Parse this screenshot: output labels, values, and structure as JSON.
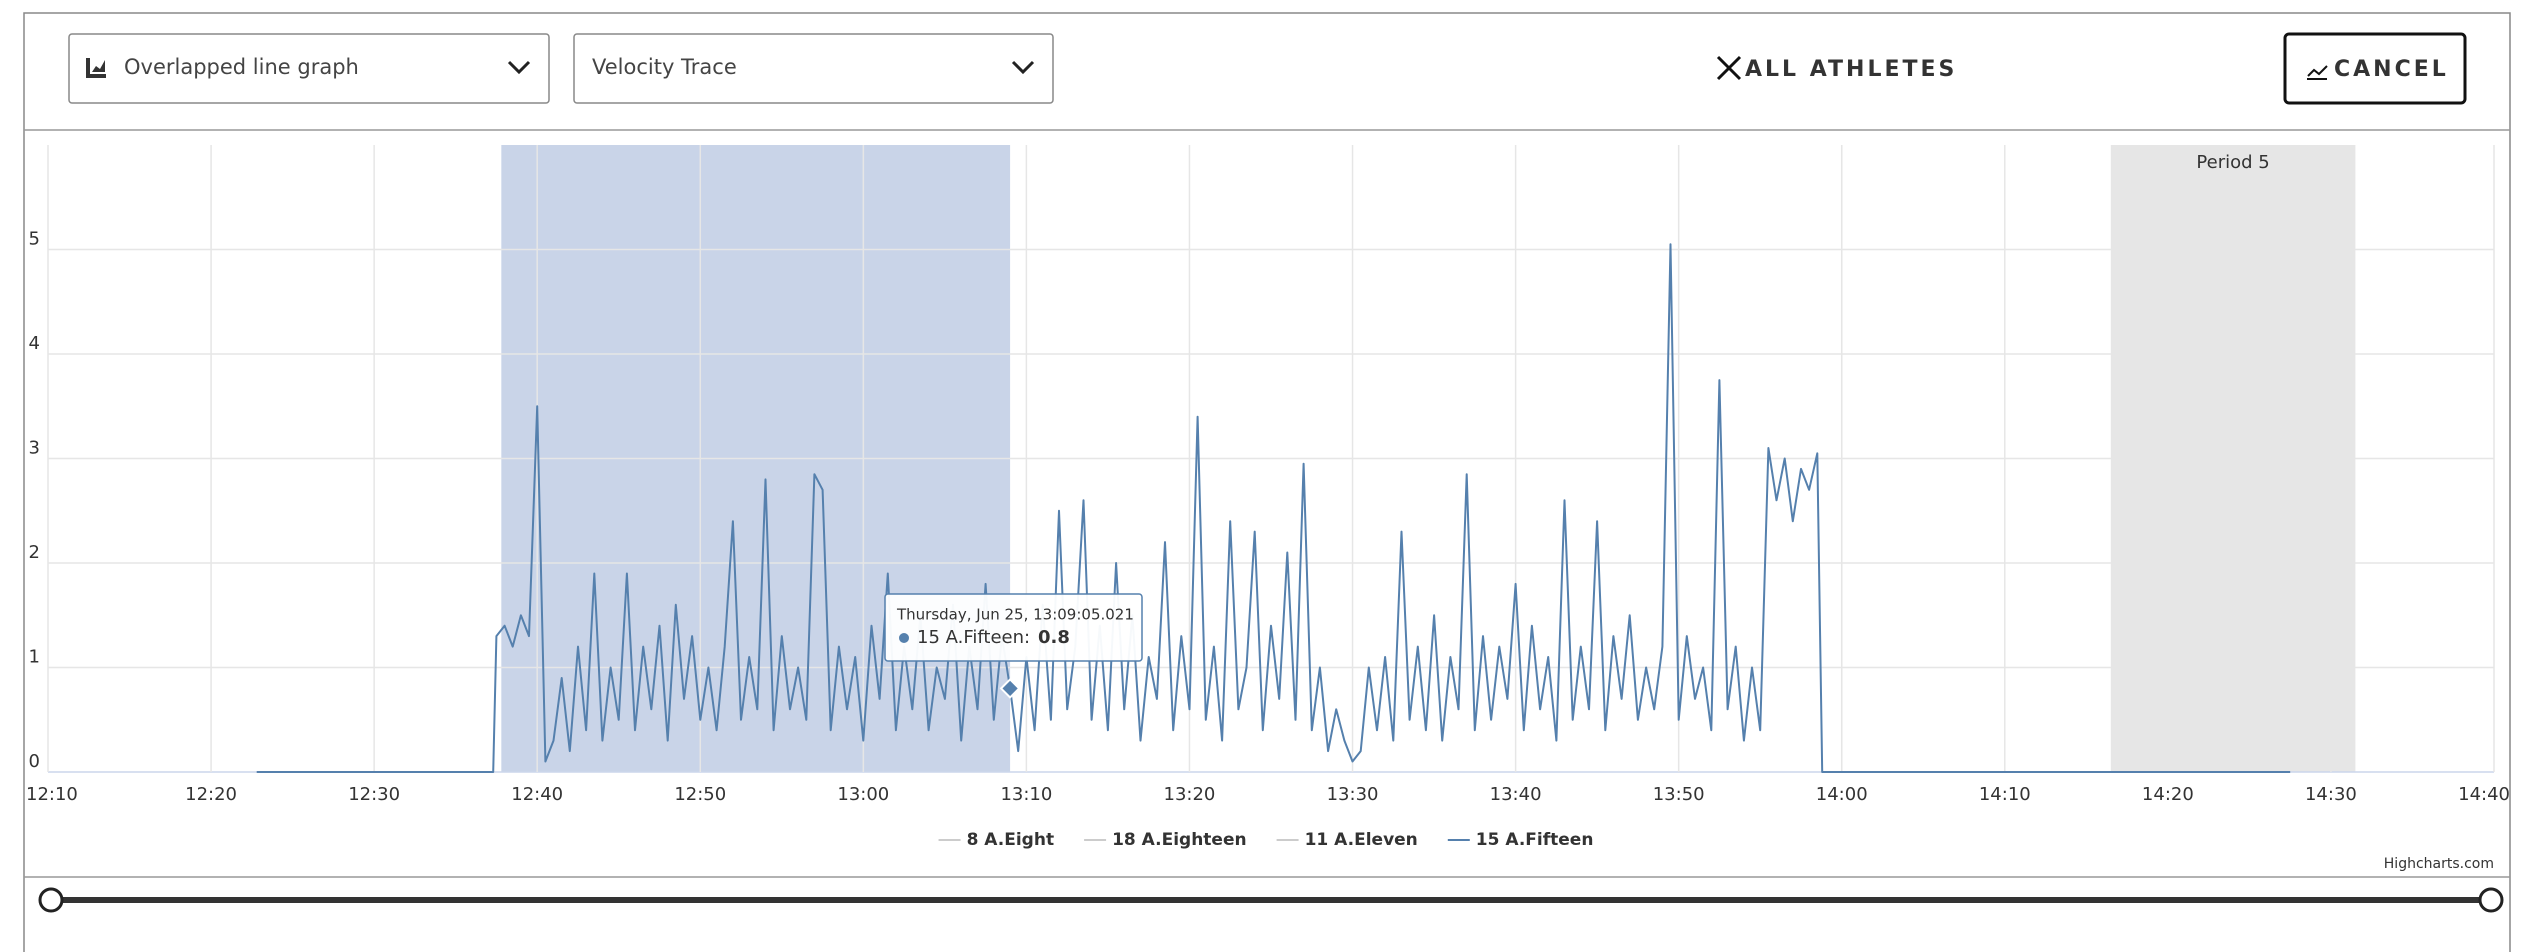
{
  "controls": {
    "chart_type": "Overlapped line graph",
    "metric": "Velocity Trace",
    "athletes": "ALL ATHLETES",
    "cancel": "CANCEL"
  },
  "chart_data": {
    "type": "line",
    "xlim": [
      730,
      880
    ],
    "xticks": [
      {
        "value": 730,
        "label": "12:10"
      },
      {
        "value": 740,
        "label": "12:20"
      },
      {
        "value": 750,
        "label": "12:30"
      },
      {
        "value": 760,
        "label": "12:40"
      },
      {
        "value": 770,
        "label": "12:50"
      },
      {
        "value": 780,
        "label": "13:00"
      },
      {
        "value": 790,
        "label": "13:10"
      },
      {
        "value": 800,
        "label": "13:20"
      },
      {
        "value": 810,
        "label": "13:30"
      },
      {
        "value": 820,
        "label": "13:40"
      },
      {
        "value": 830,
        "label": "13:50"
      },
      {
        "value": 840,
        "label": "14:00"
      },
      {
        "value": 850,
        "label": "14:10"
      },
      {
        "value": 860,
        "label": "14:20"
      },
      {
        "value": 870,
        "label": "14:30"
      },
      {
        "value": 880,
        "label": "14:40"
      }
    ],
    "ylim": [
      0,
      6
    ],
    "yticks": [
      0,
      1,
      2,
      3,
      4,
      5
    ],
    "grid": true,
    "plot_bands": [
      {
        "from": 757.8,
        "to": 789.0,
        "color": "#c9d4e8"
      },
      {
        "from": 856.5,
        "to": 871.5,
        "color": "#e6e6e6",
        "label": "Period 5"
      }
    ],
    "series": [
      {
        "name": "8 A.Eight",
        "color": "#cccccc",
        "visible": false
      },
      {
        "name": "18 A.Eighteen",
        "color": "#cccccc",
        "visible": false
      },
      {
        "name": "11 A.Eleven",
        "color": "#cccccc",
        "visible": false
      },
      {
        "name": "15 A.Fifteen",
        "color": "#5580ad",
        "visible": true,
        "x": [
          742.8,
          757.3,
          757.5,
          758,
          758.5,
          759,
          759.5,
          760,
          760.5,
          761,
          761.5,
          762,
          762.5,
          763,
          763.5,
          764,
          764.5,
          765,
          765.5,
          766,
          766.5,
          767,
          767.5,
          768,
          768.5,
          769,
          769.5,
          770,
          770.5,
          771,
          771.5,
          772,
          772.5,
          773,
          773.5,
          774,
          774.5,
          775,
          775.5,
          776,
          776.5,
          777,
          777.5,
          778,
          778.5,
          779,
          779.5,
          780,
          780.5,
          781,
          781.5,
          782,
          782.5,
          783,
          783.5,
          784,
          784.5,
          785,
          785.5,
          786,
          786.5,
          787,
          787.5,
          788,
          788.5,
          789,
          789.5,
          790,
          790.5,
          791,
          791.5,
          792,
          792.5,
          793,
          793.5,
          794,
          794.5,
          795,
          795.5,
          796,
          796.5,
          797,
          797.5,
          798,
          798.5,
          799,
          799.5,
          800,
          800.5,
          801,
          801.5,
          802,
          802.5,
          803,
          803.5,
          804,
          804.5,
          805,
          805.5,
          806,
          806.5,
          807,
          807.5,
          808,
          808.5,
          809,
          809.5,
          810,
          810.5,
          811,
          811.5,
          812,
          812.5,
          813,
          813.5,
          814,
          814.5,
          815,
          815.5,
          816,
          816.5,
          817,
          817.5,
          818,
          818.5,
          819,
          819.5,
          820,
          820.5,
          821,
          821.5,
          822,
          822.5,
          823,
          823.5,
          824,
          824.5,
          825,
          825.5,
          826,
          826.5,
          827,
          827.5,
          828,
          828.5,
          829,
          829.5,
          830,
          830.5,
          831,
          831.5,
          832,
          832.5,
          833,
          833.5,
          834,
          834.5,
          835,
          835.5,
          836,
          836.5,
          837,
          837.5,
          838,
          838.5,
          838.8,
          867.5
        ],
        "values": [
          0,
          0,
          1.3,
          1.4,
          1.2,
          1.5,
          1.3,
          3.5,
          0.1,
          0.3,
          0.9,
          0.2,
          1.2,
          0.4,
          1.9,
          0.3,
          1.0,
          0.5,
          1.9,
          0.4,
          1.2,
          0.6,
          1.4,
          0.3,
          1.6,
          0.7,
          1.3,
          0.5,
          1.0,
          0.4,
          1.2,
          2.4,
          0.5,
          1.1,
          0.6,
          2.8,
          0.4,
          1.3,
          0.6,
          1.0,
          0.5,
          2.85,
          2.7,
          0.4,
          1.2,
          0.6,
          1.1,
          0.3,
          1.4,
          0.7,
          1.9,
          0.4,
          1.2,
          0.6,
          1.5,
          0.4,
          1.0,
          0.7,
          1.6,
          0.3,
          1.2,
          0.6,
          1.8,
          0.5,
          1.3,
          0.8,
          0.2,
          1.1,
          0.4,
          1.6,
          0.5,
          2.5,
          0.6,
          1.2,
          2.6,
          0.5,
          1.4,
          0.4,
          2.0,
          0.6,
          1.5,
          0.3,
          1.1,
          0.7,
          2.2,
          0.4,
          1.3,
          0.6,
          3.4,
          0.5,
          1.2,
          0.3,
          2.4,
          0.6,
          1.0,
          2.3,
          0.4,
          1.4,
          0.7,
          2.1,
          0.5,
          2.95,
          0.4,
          1.0,
          0.2,
          0.6,
          0.3,
          0.1,
          0.2,
          1.0,
          0.4,
          1.1,
          0.3,
          2.3,
          0.5,
          1.2,
          0.4,
          1.5,
          0.3,
          1.1,
          0.6,
          2.85,
          0.4,
          1.3,
          0.5,
          1.2,
          0.7,
          1.8,
          0.4,
          1.4,
          0.6,
          1.1,
          0.3,
          2.6,
          0.5,
          1.2,
          0.6,
          2.4,
          0.4,
          1.3,
          0.7,
          1.5,
          0.5,
          1.0,
          0.6,
          1.2,
          5.05,
          0.5,
          1.3,
          0.7,
          1.0,
          0.4,
          3.75,
          0.6,
          1.2,
          0.3,
          1.0,
          0.4,
          3.1,
          2.6,
          3.0,
          2.4,
          2.9,
          2.7,
          3.05,
          0,
          0
        ]
      }
    ],
    "tooltip": {
      "header": "Thursday, Jun 25, 13:09:05.021"
    },
    "credits": "Highcharts.com"
  }
}
